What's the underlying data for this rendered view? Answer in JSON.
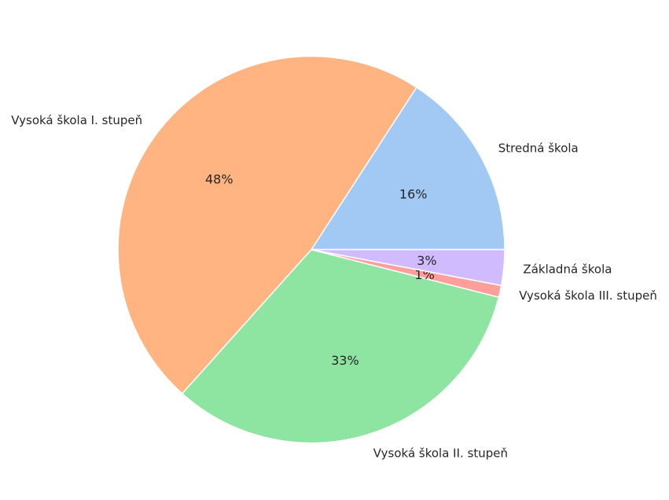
{
  "chart_data": {
    "type": "pie",
    "title": "",
    "slices": [
      {
        "label": "Stredná škola",
        "value": 16,
        "pct_label": "16%",
        "color": "#a1c9f4"
      },
      {
        "label": "Vysoká škola I. stupeň",
        "value": 48,
        "pct_label": "48%",
        "color": "#ffb482"
      },
      {
        "label": "Vysoká škola II. stupeň",
        "value": 33,
        "pct_label": "33%",
        "color": "#8de5a1"
      },
      {
        "label": "Vysoká škola III. stupeň",
        "value": 1,
        "pct_label": "1%",
        "color": "#ff9f9b"
      },
      {
        "label": "Základná škola",
        "value": 3,
        "pct_label": "3%",
        "color": "#d0bbff"
      }
    ],
    "start_angle": 0,
    "direction": "counterclockwise"
  }
}
